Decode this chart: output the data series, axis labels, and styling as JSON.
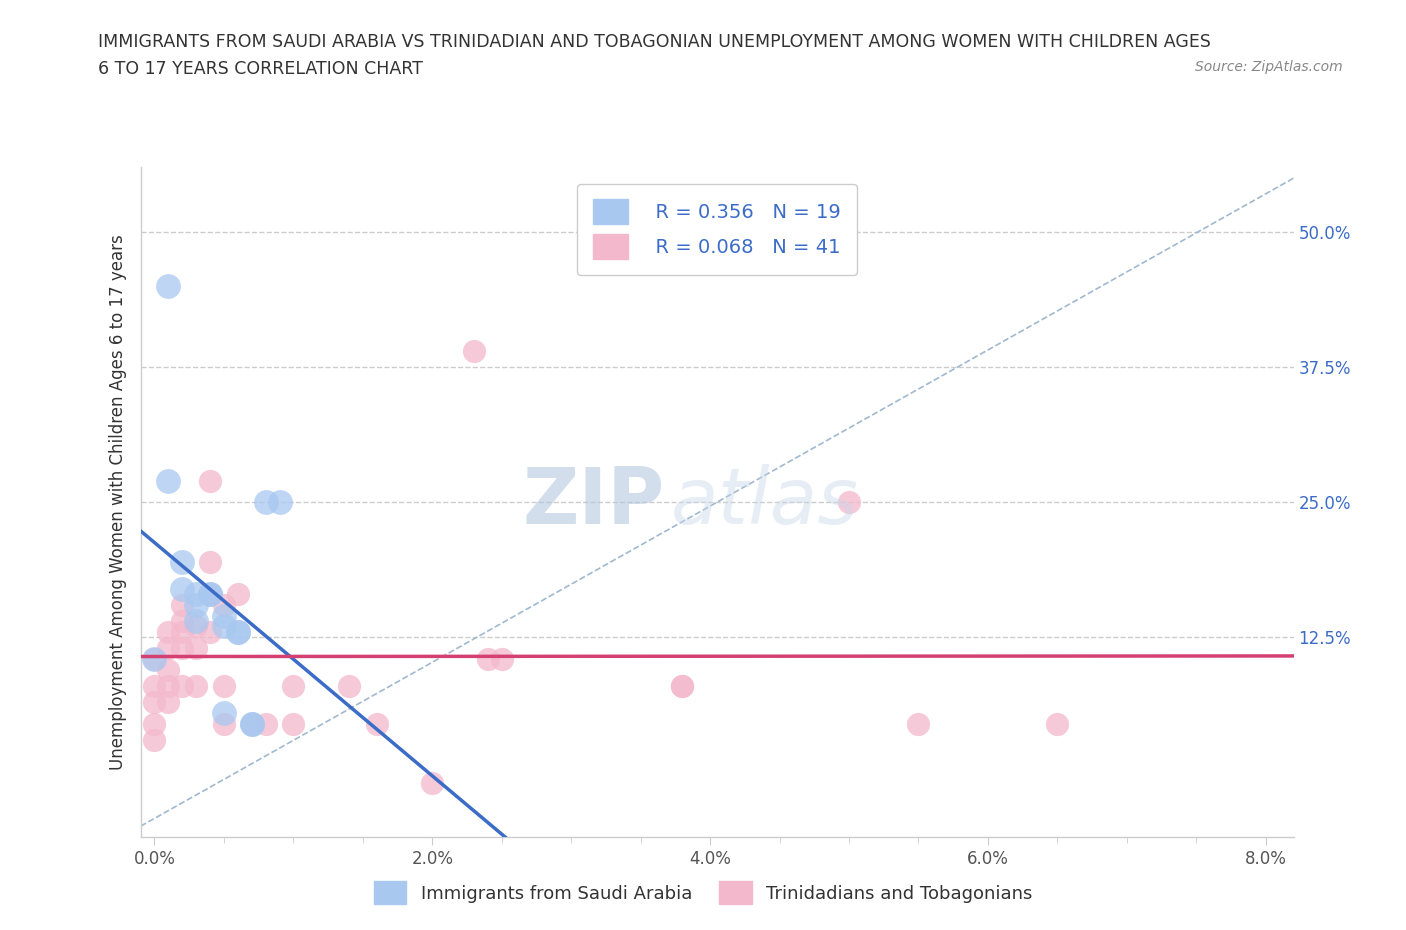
{
  "title_line1": "IMMIGRANTS FROM SAUDI ARABIA VS TRINIDADIAN AND TOBAGONIAN UNEMPLOYMENT AMONG WOMEN WITH CHILDREN AGES",
  "title_line2": "6 TO 17 YEARS CORRELATION CHART",
  "source_text": "Source: ZipAtlas.com",
  "ylabel": "Unemployment Among Women with Children Ages 6 to 17 years",
  "xlabel_ticks": [
    "0.0%",
    "2.0%",
    "4.0%",
    "6.0%",
    "8.0%"
  ],
  "ylabel_ticks_vals": [
    0.125,
    0.25,
    0.375,
    0.5
  ],
  "ylabel_ticks_labels": [
    "12.5%",
    "25.0%",
    "37.5%",
    "50.0%"
  ],
  "xlim": [
    -0.001,
    0.082
  ],
  "ylim": [
    -0.06,
    0.56
  ],
  "blue_color": "#a8c8f0",
  "pink_color": "#f4b8cc",
  "blue_line_color": "#3b6cc7",
  "pink_line_color": "#d44070",
  "dashed_line_color": "#a0b8d0",
  "legend_R1": "0.356",
  "legend_N1": "19",
  "legend_R2": "0.068",
  "legend_N2": "41",
  "watermark_zip": "ZIP",
  "watermark_atlas": "atlas",
  "saudi_points": [
    [
      0.0,
      0.105
    ],
    [
      0.001,
      0.45
    ],
    [
      0.001,
      0.27
    ],
    [
      0.002,
      0.17
    ],
    [
      0.002,
      0.195
    ],
    [
      0.003,
      0.165
    ],
    [
      0.003,
      0.155
    ],
    [
      0.003,
      0.14
    ],
    [
      0.004,
      0.165
    ],
    [
      0.004,
      0.165
    ],
    [
      0.005,
      0.135
    ],
    [
      0.005,
      0.145
    ],
    [
      0.005,
      0.055
    ],
    [
      0.006,
      0.13
    ],
    [
      0.006,
      0.13
    ],
    [
      0.007,
      0.045
    ],
    [
      0.007,
      0.045
    ],
    [
      0.008,
      0.25
    ],
    [
      0.009,
      0.25
    ]
  ],
  "tt_points": [
    [
      0.0,
      0.105
    ],
    [
      0.0,
      0.08
    ],
    [
      0.0,
      0.065
    ],
    [
      0.0,
      0.045
    ],
    [
      0.0,
      0.03
    ],
    [
      0.001,
      0.13
    ],
    [
      0.001,
      0.115
    ],
    [
      0.001,
      0.095
    ],
    [
      0.001,
      0.08
    ],
    [
      0.001,
      0.065
    ],
    [
      0.002,
      0.155
    ],
    [
      0.002,
      0.14
    ],
    [
      0.002,
      0.13
    ],
    [
      0.002,
      0.115
    ],
    [
      0.002,
      0.08
    ],
    [
      0.003,
      0.135
    ],
    [
      0.003,
      0.115
    ],
    [
      0.003,
      0.08
    ],
    [
      0.004,
      0.27
    ],
    [
      0.004,
      0.195
    ],
    [
      0.004,
      0.165
    ],
    [
      0.004,
      0.13
    ],
    [
      0.005,
      0.155
    ],
    [
      0.005,
      0.08
    ],
    [
      0.005,
      0.045
    ],
    [
      0.006,
      0.165
    ],
    [
      0.007,
      0.045
    ],
    [
      0.008,
      0.045
    ],
    [
      0.01,
      0.045
    ],
    [
      0.01,
      0.08
    ],
    [
      0.014,
      0.08
    ],
    [
      0.016,
      0.045
    ],
    [
      0.02,
      -0.01
    ],
    [
      0.023,
      0.39
    ],
    [
      0.024,
      0.105
    ],
    [
      0.025,
      0.105
    ],
    [
      0.038,
      0.08
    ],
    [
      0.038,
      0.08
    ],
    [
      0.05,
      0.25
    ],
    [
      0.055,
      0.045
    ],
    [
      0.065,
      0.045
    ]
  ]
}
